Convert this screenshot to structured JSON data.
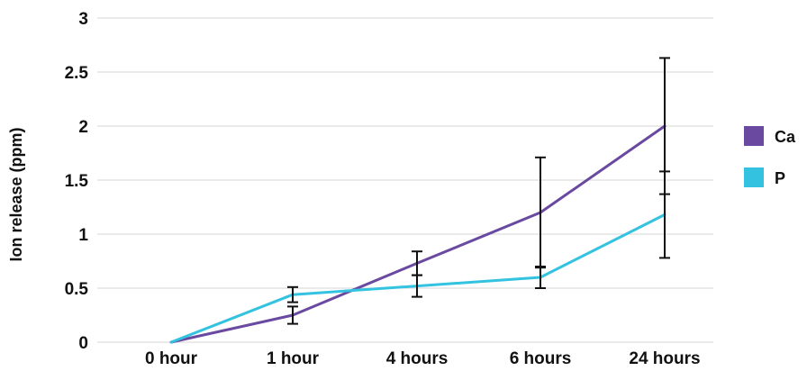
{
  "chart_data": {
    "type": "line",
    "title": "",
    "xlabel": "",
    "ylabel": "Ion release (ppm)",
    "categories": [
      "0 hour",
      "1 hour",
      "4 hours",
      "6 hours",
      "24 hours"
    ],
    "ylim": [
      0,
      3
    ],
    "yticks": [
      0,
      0.5,
      1,
      1.5,
      2,
      2.5,
      3
    ],
    "ytick_labels": [
      "0",
      "0.5",
      "1",
      "1.5",
      "2",
      "2.5",
      "3"
    ],
    "grid": "horizontal",
    "legend_position": "right",
    "series": [
      {
        "name": "Ca",
        "color": "#6a4aa0",
        "values": [
          0,
          0.25,
          0.73,
          1.2,
          2.0
        ],
        "error": [
          0,
          0.08,
          0.11,
          0.51,
          0.63
        ]
      },
      {
        "name": "P",
        "color": "#33c3e0",
        "values": [
          0,
          0.44,
          0.52,
          0.6,
          1.18
        ],
        "error": [
          0,
          0.07,
          0.1,
          0.1,
          0.4
        ]
      }
    ]
  }
}
